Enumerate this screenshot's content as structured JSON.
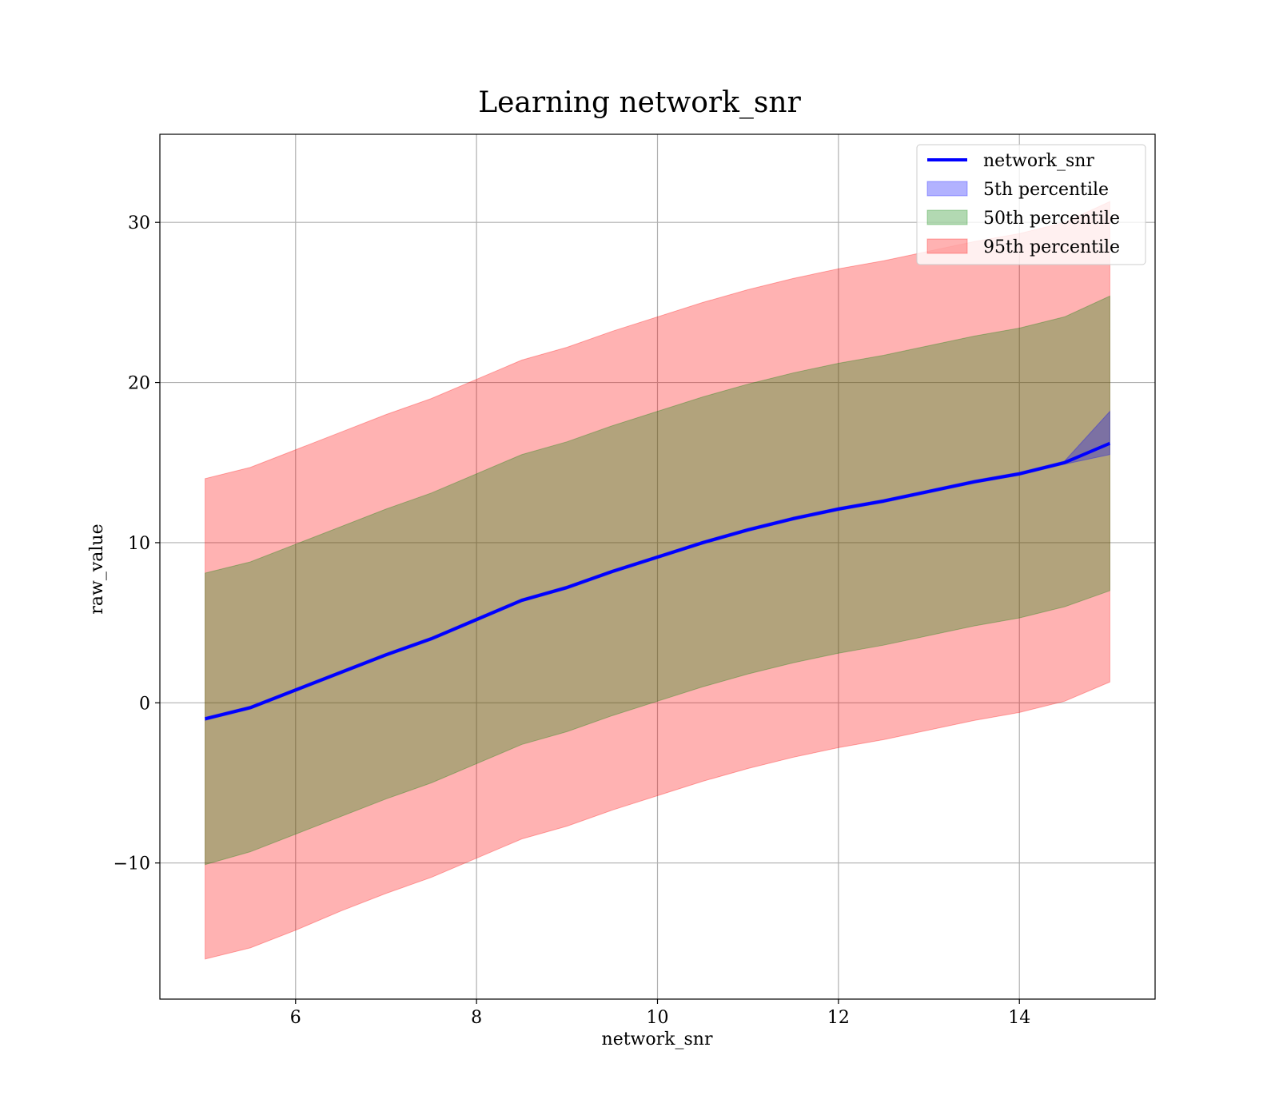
{
  "chart_data": {
    "type": "area",
    "title": "Learning network_snr",
    "xlabel": "network_snr",
    "ylabel": "raw_value",
    "xlim": [
      4.5,
      15.5
    ],
    "ylim": [
      -18.5,
      35.5
    ],
    "xticks": [
      6,
      8,
      10,
      12,
      14
    ],
    "yticks": [
      -10,
      0,
      10,
      20,
      30
    ],
    "ytick_labels": [
      "−10",
      "0",
      "10",
      "20",
      "30"
    ],
    "grid": true,
    "legend_position": "top-right",
    "x": [
      5.0,
      5.5,
      6.0,
      6.5,
      7.0,
      7.5,
      8.0,
      8.5,
      9.0,
      9.5,
      10.0,
      10.5,
      11.0,
      11.5,
      12.0,
      12.5,
      13.0,
      13.5,
      14.0,
      14.5,
      15.0
    ],
    "series": [
      {
        "name": "network_snr",
        "kind": "line",
        "color": "#0000ff",
        "values": [
          -1.0,
          -0.3,
          0.8,
          1.9,
          3.0,
          4.0,
          5.2,
          6.4,
          7.2,
          8.2,
          9.1,
          10.0,
          10.8,
          11.5,
          12.1,
          12.6,
          13.2,
          13.8,
          14.3,
          15.0,
          16.2
        ]
      },
      {
        "name": "5th percentile",
        "kind": "band",
        "color": "#0000ff",
        "lower": [
          -1.1,
          -0.4,
          0.7,
          1.8,
          2.9,
          3.9,
          5.1,
          6.3,
          7.1,
          8.1,
          9.0,
          9.9,
          10.7,
          11.4,
          12.0,
          12.5,
          13.1,
          13.7,
          14.2,
          14.9,
          15.5
        ],
        "upper": [
          -0.9,
          -0.2,
          0.9,
          2.0,
          3.1,
          4.1,
          5.3,
          6.5,
          7.3,
          8.3,
          9.2,
          10.1,
          10.9,
          11.6,
          12.2,
          12.7,
          13.3,
          13.9,
          14.4,
          15.1,
          18.2
        ]
      },
      {
        "name": "50th percentile",
        "kind": "band",
        "color": "#008000",
        "lower": [
          -10.1,
          -9.3,
          -8.2,
          -7.1,
          -6.0,
          -5.0,
          -3.8,
          -2.6,
          -1.8,
          -0.8,
          0.1,
          1.0,
          1.8,
          2.5,
          3.1,
          3.6,
          4.2,
          4.8,
          5.3,
          6.0,
          7.0
        ],
        "upper": [
          8.1,
          8.8,
          9.9,
          11.0,
          12.1,
          13.1,
          14.3,
          15.5,
          16.3,
          17.3,
          18.2,
          19.1,
          19.9,
          20.6,
          21.2,
          21.7,
          22.3,
          22.9,
          23.4,
          24.1,
          25.4
        ]
      },
      {
        "name": "95th percentile",
        "kind": "band",
        "color": "#ff0000",
        "lower": [
          -16.0,
          -15.3,
          -14.2,
          -13.0,
          -11.9,
          -10.9,
          -9.7,
          -8.5,
          -7.7,
          -6.7,
          -5.8,
          -4.9,
          -4.1,
          -3.4,
          -2.8,
          -2.3,
          -1.7,
          -1.1,
          -0.6,
          0.1,
          1.3
        ],
        "upper": [
          14.0,
          14.7,
          15.8,
          16.9,
          18.0,
          19.0,
          20.2,
          21.4,
          22.2,
          23.2,
          24.1,
          25.0,
          25.8,
          26.5,
          27.1,
          27.6,
          28.2,
          28.8,
          29.3,
          30.0,
          31.3
        ]
      }
    ]
  }
}
